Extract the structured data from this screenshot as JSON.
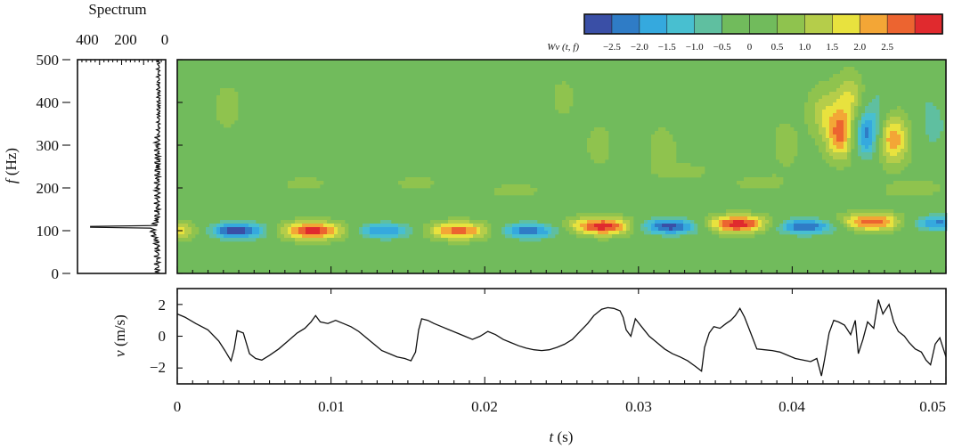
{
  "chart_data": [
    {
      "type": "heatmap",
      "name": "wavelet-map",
      "ylabel_italic": "f",
      "ylabel_unit": " (Hz)",
      "ylim": [
        0,
        500
      ],
      "xlim": [
        0,
        0.05
      ],
      "yticks": [
        "0",
        "100",
        "200",
        "300",
        "400",
        "500"
      ],
      "colorbar": {
        "label": "Wv (t, f)",
        "min": -3.0,
        "max": 3.0,
        "ticks": [
          "−2.5",
          "−2.0",
          "−1.5",
          "−1.0",
          "−0.5",
          "0",
          "0.5",
          "1.0",
          "1.5",
          "2.0",
          "2.5"
        ],
        "colors": [
          "#3a4fa6",
          "#2f7cc6",
          "#35a9de",
          "#48bfd0",
          "#5fbfa0",
          "#71bb5c",
          "#71bb5c",
          "#8fc34e",
          "#b5cd4a",
          "#e8e23e",
          "#f3a636",
          "#ec6430",
          "#e02a2e"
        ]
      },
      "blobs_t_f_amp": [
        [
          0.0,
          100,
          1.6
        ],
        [
          0.0038,
          100,
          -3.0
        ],
        [
          0.0088,
          100,
          2.8
        ],
        [
          0.0135,
          100,
          -2.2
        ],
        [
          0.0183,
          100,
          2.4
        ],
        [
          0.0228,
          100,
          -2.4
        ],
        [
          0.0277,
          110,
          2.9
        ],
        [
          0.032,
          110,
          -2.9
        ],
        [
          0.0365,
          115,
          3.0
        ],
        [
          0.0408,
          110,
          -2.7
        ],
        [
          0.0452,
          120,
          2.5
        ],
        [
          0.0495,
          118,
          -2.2
        ],
        [
          0.0432,
          325,
          2.3
        ],
        [
          0.0448,
          325,
          -2.4
        ],
        [
          0.0465,
          315,
          2.1
        ],
        [
          0.0492,
          340,
          -0.9
        ],
        [
          0.0033,
          390,
          0.45
        ],
        [
          0.0057,
          390,
          -0.4
        ],
        [
          0.009,
          210,
          0.5
        ],
        [
          0.0112,
          210,
          -0.45
        ],
        [
          0.016,
          210,
          0.5
        ],
        [
          0.0185,
          205,
          -0.5
        ],
        [
          0.0215,
          195,
          0.45
        ],
        [
          0.0275,
          300,
          0.45
        ],
        [
          0.0293,
          300,
          -0.5
        ],
        [
          0.0315,
          290,
          0.5
        ],
        [
          0.034,
          240,
          0.6
        ],
        [
          0.0356,
          240,
          -0.5
        ],
        [
          0.0385,
          215,
          0.75
        ],
        [
          0.0405,
          215,
          -0.6
        ],
        [
          0.0375,
          300,
          -0.55
        ],
        [
          0.0395,
          300,
          0.5
        ],
        [
          0.042,
          380,
          0.9
        ],
        [
          0.0438,
          410,
          1.2
        ],
        [
          0.0455,
          400,
          -0.7
        ],
        [
          0.0475,
          200,
          0.6
        ],
        [
          0.0488,
          420,
          -0.5
        ],
        [
          0.044,
          210,
          -0.6
        ],
        [
          0.0251,
          410,
          0.35
        ],
        [
          0.0125,
          360,
          -0.35
        ]
      ]
    },
    {
      "type": "line",
      "name": "spectrum",
      "title": "Spectrum",
      "xticks": [
        "400",
        "200",
        "0"
      ],
      "xlim": [
        0,
        450
      ],
      "ylim": [
        0,
        500
      ],
      "peak": {
        "f": 109,
        "value": 390
      }
    },
    {
      "type": "line",
      "name": "velocity",
      "ylabel_italic": "v",
      "ylabel_unit": " (m/s)",
      "xlabel_italic": "t",
      "xlabel_unit": " (s)",
      "ylim": [
        -3,
        3
      ],
      "xlim": [
        0,
        0.05
      ],
      "yticks": [
        "−2",
        "0",
        "2"
      ],
      "xticks": [
        "0",
        "0.01",
        "0.02",
        "0.03",
        "0.04",
        "0.05"
      ],
      "t": [
        0,
        0.0005,
        0.0012,
        0.002,
        0.0027,
        0.0031,
        0.0035,
        0.0037,
        0.0039,
        0.0043,
        0.0047,
        0.0051,
        0.0055,
        0.006,
        0.0066,
        0.0072,
        0.0078,
        0.0083,
        0.0087,
        0.009,
        0.0093,
        0.0098,
        0.0103,
        0.0108,
        0.0113,
        0.0118,
        0.0123,
        0.0128,
        0.0133,
        0.0138,
        0.0143,
        0.0148,
        0.0152,
        0.0155,
        0.0157,
        0.0159,
        0.0163,
        0.0167,
        0.0172,
        0.0177,
        0.0182,
        0.0187,
        0.0192,
        0.0197,
        0.0202,
        0.0207,
        0.0212,
        0.0217,
        0.0222,
        0.0227,
        0.0232,
        0.0237,
        0.0242,
        0.0247,
        0.0252,
        0.0257,
        0.0262,
        0.0267,
        0.0271,
        0.0276,
        0.028,
        0.0284,
        0.0288,
        0.029,
        0.0292,
        0.0295,
        0.0298,
        0.0302,
        0.0307,
        0.0312,
        0.0317,
        0.0322,
        0.0327,
        0.0332,
        0.0337,
        0.0341,
        0.0343,
        0.0346,
        0.0349,
        0.0353,
        0.0357,
        0.036,
        0.0363,
        0.0366,
        0.0369,
        0.0373,
        0.0377,
        0.0382,
        0.0387,
        0.0392,
        0.0397,
        0.0402,
        0.0407,
        0.0412,
        0.0416,
        0.0419,
        0.0421,
        0.0424,
        0.0427,
        0.043,
        0.0434,
        0.0438,
        0.0441,
        0.0443,
        0.0446,
        0.0449,
        0.0453,
        0.0456,
        0.0459,
        0.0463,
        0.0466,
        0.0469,
        0.0473,
        0.0476,
        0.048,
        0.0484,
        0.0487,
        0.049,
        0.0493,
        0.0496,
        0.05
      ],
      "v": [
        1.4,
        1.2,
        0.8,
        0.4,
        -0.3,
        -0.9,
        -1.55,
        -0.8,
        0.35,
        0.2,
        -1.1,
        -1.4,
        -1.5,
        -1.2,
        -0.8,
        -0.3,
        0.2,
        0.5,
        0.9,
        1.3,
        0.9,
        0.8,
        1.0,
        0.8,
        0.6,
        0.3,
        -0.1,
        -0.5,
        -0.9,
        -1.1,
        -1.3,
        -1.4,
        -1.55,
        -1.0,
        0.4,
        1.1,
        1.0,
        0.8,
        0.6,
        0.4,
        0.2,
        0.0,
        -0.2,
        0.0,
        0.3,
        0.1,
        -0.2,
        -0.4,
        -0.6,
        -0.75,
        -0.85,
        -0.9,
        -0.85,
        -0.7,
        -0.5,
        -0.2,
        0.3,
        0.8,
        1.3,
        1.7,
        1.8,
        1.75,
        1.6,
        1.2,
        0.4,
        0.0,
        1.1,
        0.6,
        0.0,
        -0.4,
        -0.8,
        -1.1,
        -1.3,
        -1.55,
        -1.9,
        -2.2,
        -0.7,
        0.2,
        0.6,
        0.5,
        0.8,
        1.0,
        1.3,
        1.75,
        1.2,
        0.2,
        -0.8,
        -0.85,
        -0.9,
        -1.0,
        -1.2,
        -1.4,
        -1.5,
        -1.6,
        -1.4,
        -2.5,
        -1.5,
        0.2,
        1.0,
        0.9,
        0.7,
        0.1,
        1.0,
        -1.1,
        -0.2,
        0.9,
        0.5,
        2.3,
        1.4,
        2.0,
        0.9,
        0.3,
        0.0,
        -0.4,
        -0.8,
        -1.0,
        -1.5,
        -1.8,
        -0.5,
        -0.1,
        -1.3
      ]
    }
  ]
}
